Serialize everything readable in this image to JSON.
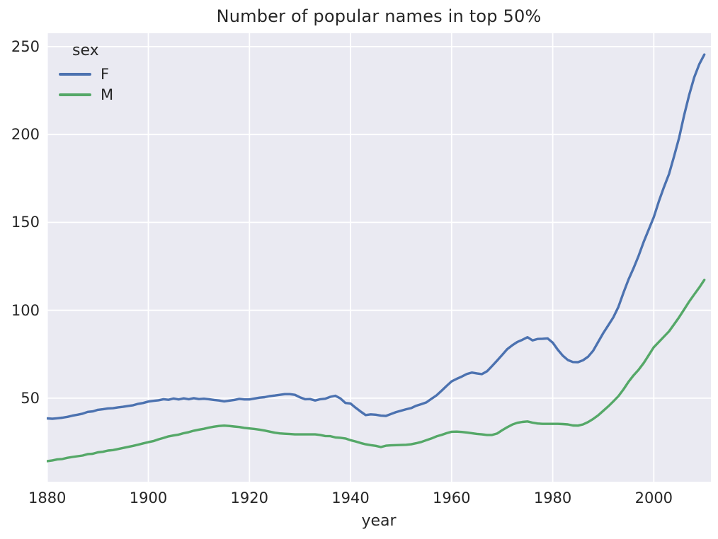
{
  "chart_data": {
    "type": "line",
    "title": "Number of popular names in top 50%",
    "xlabel": "year",
    "ylabel": "",
    "legend_title": "sex",
    "legend_position": "upper left",
    "grid": true,
    "plot_bg_color": "#eaeaf2",
    "grid_color": "#ffffff",
    "text_color": "#262626",
    "xlim": [
      1879.9,
      2011.3
    ],
    "ylim": [
      2.5,
      257.6
    ],
    "xticks": [
      1880,
      1900,
      1920,
      1940,
      1960,
      1980,
      2000
    ],
    "yticks": [
      50,
      100,
      150,
      200,
      250
    ],
    "x_years": {
      "start": 1880,
      "end": 2010,
      "step": 1
    },
    "series": [
      {
        "name": "F",
        "color": "#4c72b0",
        "values": [
          38.5,
          38.3,
          38.6,
          38.9,
          39.4,
          40.1,
          40.6,
          41.2,
          42.2,
          42.5,
          43.4,
          43.7,
          44.2,
          44.3,
          44.8,
          45.1,
          45.6,
          46.0,
          46.8,
          47.3,
          48.1,
          48.5,
          48.8,
          49.4,
          49.1,
          49.8,
          49.3,
          49.9,
          49.4,
          50.0,
          49.5,
          49.7,
          49.4,
          49.0,
          48.7,
          48.2,
          48.6,
          49.0,
          49.6,
          49.3,
          49.3,
          49.8,
          50.3,
          50.6,
          51.2,
          51.5,
          51.9,
          52.3,
          52.3,
          51.9,
          50.5,
          49.4,
          49.5,
          48.7,
          49.4,
          49.7,
          50.8,
          51.4,
          49.9,
          47.3,
          47.0,
          44.6,
          42.4,
          40.4,
          40.8,
          40.6,
          40.1,
          39.9,
          41.0,
          42.1,
          42.9,
          43.7,
          44.4,
          45.7,
          46.6,
          47.6,
          49.6,
          51.6,
          54.2,
          57.0,
          59.6,
          61.0,
          62.3,
          63.8,
          64.6,
          64.1,
          63.7,
          65.3,
          68.3,
          71.4,
          74.6,
          77.9,
          80.1,
          82.0,
          83.2,
          84.7,
          82.9,
          83.7,
          83.8,
          84.0,
          81.6,
          77.6,
          74.2,
          71.7,
          70.6,
          70.5,
          71.6,
          73.6,
          77.0,
          82.0,
          87.0,
          91.5,
          96.0,
          102.0,
          110.0,
          117.5,
          124.0,
          131.0,
          139.0,
          146.0,
          153.0,
          162.0,
          170.0,
          177.5,
          187.5,
          198.0,
          211.0,
          222.5,
          232.5,
          240.0,
          245.5
        ]
      },
      {
        "name": "M",
        "color": "#55a868",
        "values": [
          14.2,
          14.6,
          15.2,
          15.4,
          16.1,
          16.6,
          17.0,
          17.4,
          18.2,
          18.4,
          19.2,
          19.5,
          20.2,
          20.5,
          21.1,
          21.7,
          22.3,
          22.9,
          23.6,
          24.3,
          25.0,
          25.6,
          26.6,
          27.4,
          28.3,
          28.8,
          29.3,
          30.1,
          30.7,
          31.5,
          32.1,
          32.6,
          33.3,
          33.8,
          34.2,
          34.4,
          34.2,
          33.9,
          33.6,
          33.1,
          32.8,
          32.5,
          32.1,
          31.6,
          31.0,
          30.4,
          30.0,
          29.8,
          29.6,
          29.4,
          29.4,
          29.4,
          29.4,
          29.4,
          29.1,
          28.5,
          28.4,
          27.7,
          27.5,
          27.1,
          26.1,
          25.4,
          24.5,
          23.8,
          23.3,
          22.9,
          22.2,
          23.0,
          23.2,
          23.3,
          23.4,
          23.5,
          23.8,
          24.4,
          25.1,
          26.1,
          27.1,
          28.3,
          29.1,
          30.1,
          30.9,
          31.0,
          30.8,
          30.5,
          30.1,
          29.7,
          29.4,
          29.1,
          29.1,
          29.9,
          31.8,
          33.5,
          35.0,
          36.0,
          36.5,
          36.8,
          36.1,
          35.6,
          35.4,
          35.4,
          35.4,
          35.4,
          35.3,
          35.1,
          34.5,
          34.4,
          35.1,
          36.4,
          38.2,
          40.3,
          42.8,
          45.4,
          48.2,
          51.2,
          55.0,
          59.3,
          63.0,
          66.2,
          70.0,
          74.5,
          79.0,
          82.0,
          85.0,
          88.0,
          92.0,
          96.0,
          100.5,
          105.0,
          109.0,
          113.0,
          117.3
        ]
      }
    ]
  }
}
